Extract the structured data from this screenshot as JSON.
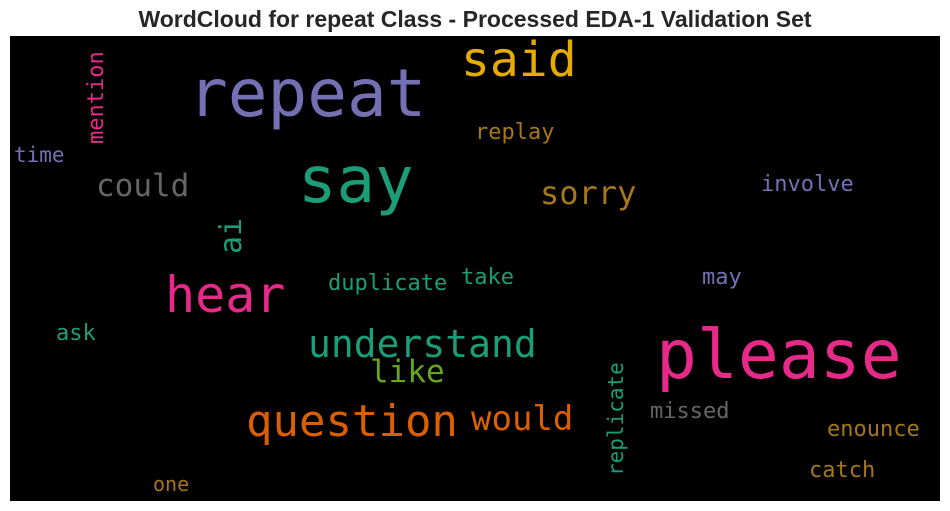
{
  "title": "WordCloud for repeat Class - Processed EDA-1 Validation Set",
  "chart_data": {
    "type": "wordcloud",
    "background": "#000000",
    "words": [
      {
        "text": "please",
        "color": "#E7298A"
      },
      {
        "text": "repeat",
        "color": "#7570B3"
      },
      {
        "text": "say",
        "color": "#1B9E77"
      },
      {
        "text": "said",
        "color": "#E6AB02"
      },
      {
        "text": "hear",
        "color": "#E7298A"
      },
      {
        "text": "question",
        "color": "#D95F02"
      },
      {
        "text": "understand",
        "color": "#1B9E77"
      },
      {
        "text": "would",
        "color": "#D95F02"
      },
      {
        "text": "sorry",
        "color": "#A6761D"
      },
      {
        "text": "could",
        "color": "#666666"
      },
      {
        "text": "like",
        "color": "#66A61E"
      },
      {
        "text": "ai",
        "color": "#1B9E77"
      },
      {
        "text": "replay",
        "color": "#A6761D"
      },
      {
        "text": "mention",
        "color": "#E7298A"
      },
      {
        "text": "involve",
        "color": "#7570B3"
      },
      {
        "text": "time",
        "color": "#7570B3"
      },
      {
        "text": "duplicate",
        "color": "#1B9E77"
      },
      {
        "text": "take",
        "color": "#1B9E77"
      },
      {
        "text": "may",
        "color": "#7570B3"
      },
      {
        "text": "ask",
        "color": "#1B9E77"
      },
      {
        "text": "replicate",
        "color": "#1B9E77"
      },
      {
        "text": "missed",
        "color": "#666666"
      },
      {
        "text": "enounce",
        "color": "#A6761D"
      },
      {
        "text": "catch",
        "color": "#A6761D"
      },
      {
        "text": "one",
        "color": "#A6761D"
      }
    ]
  }
}
